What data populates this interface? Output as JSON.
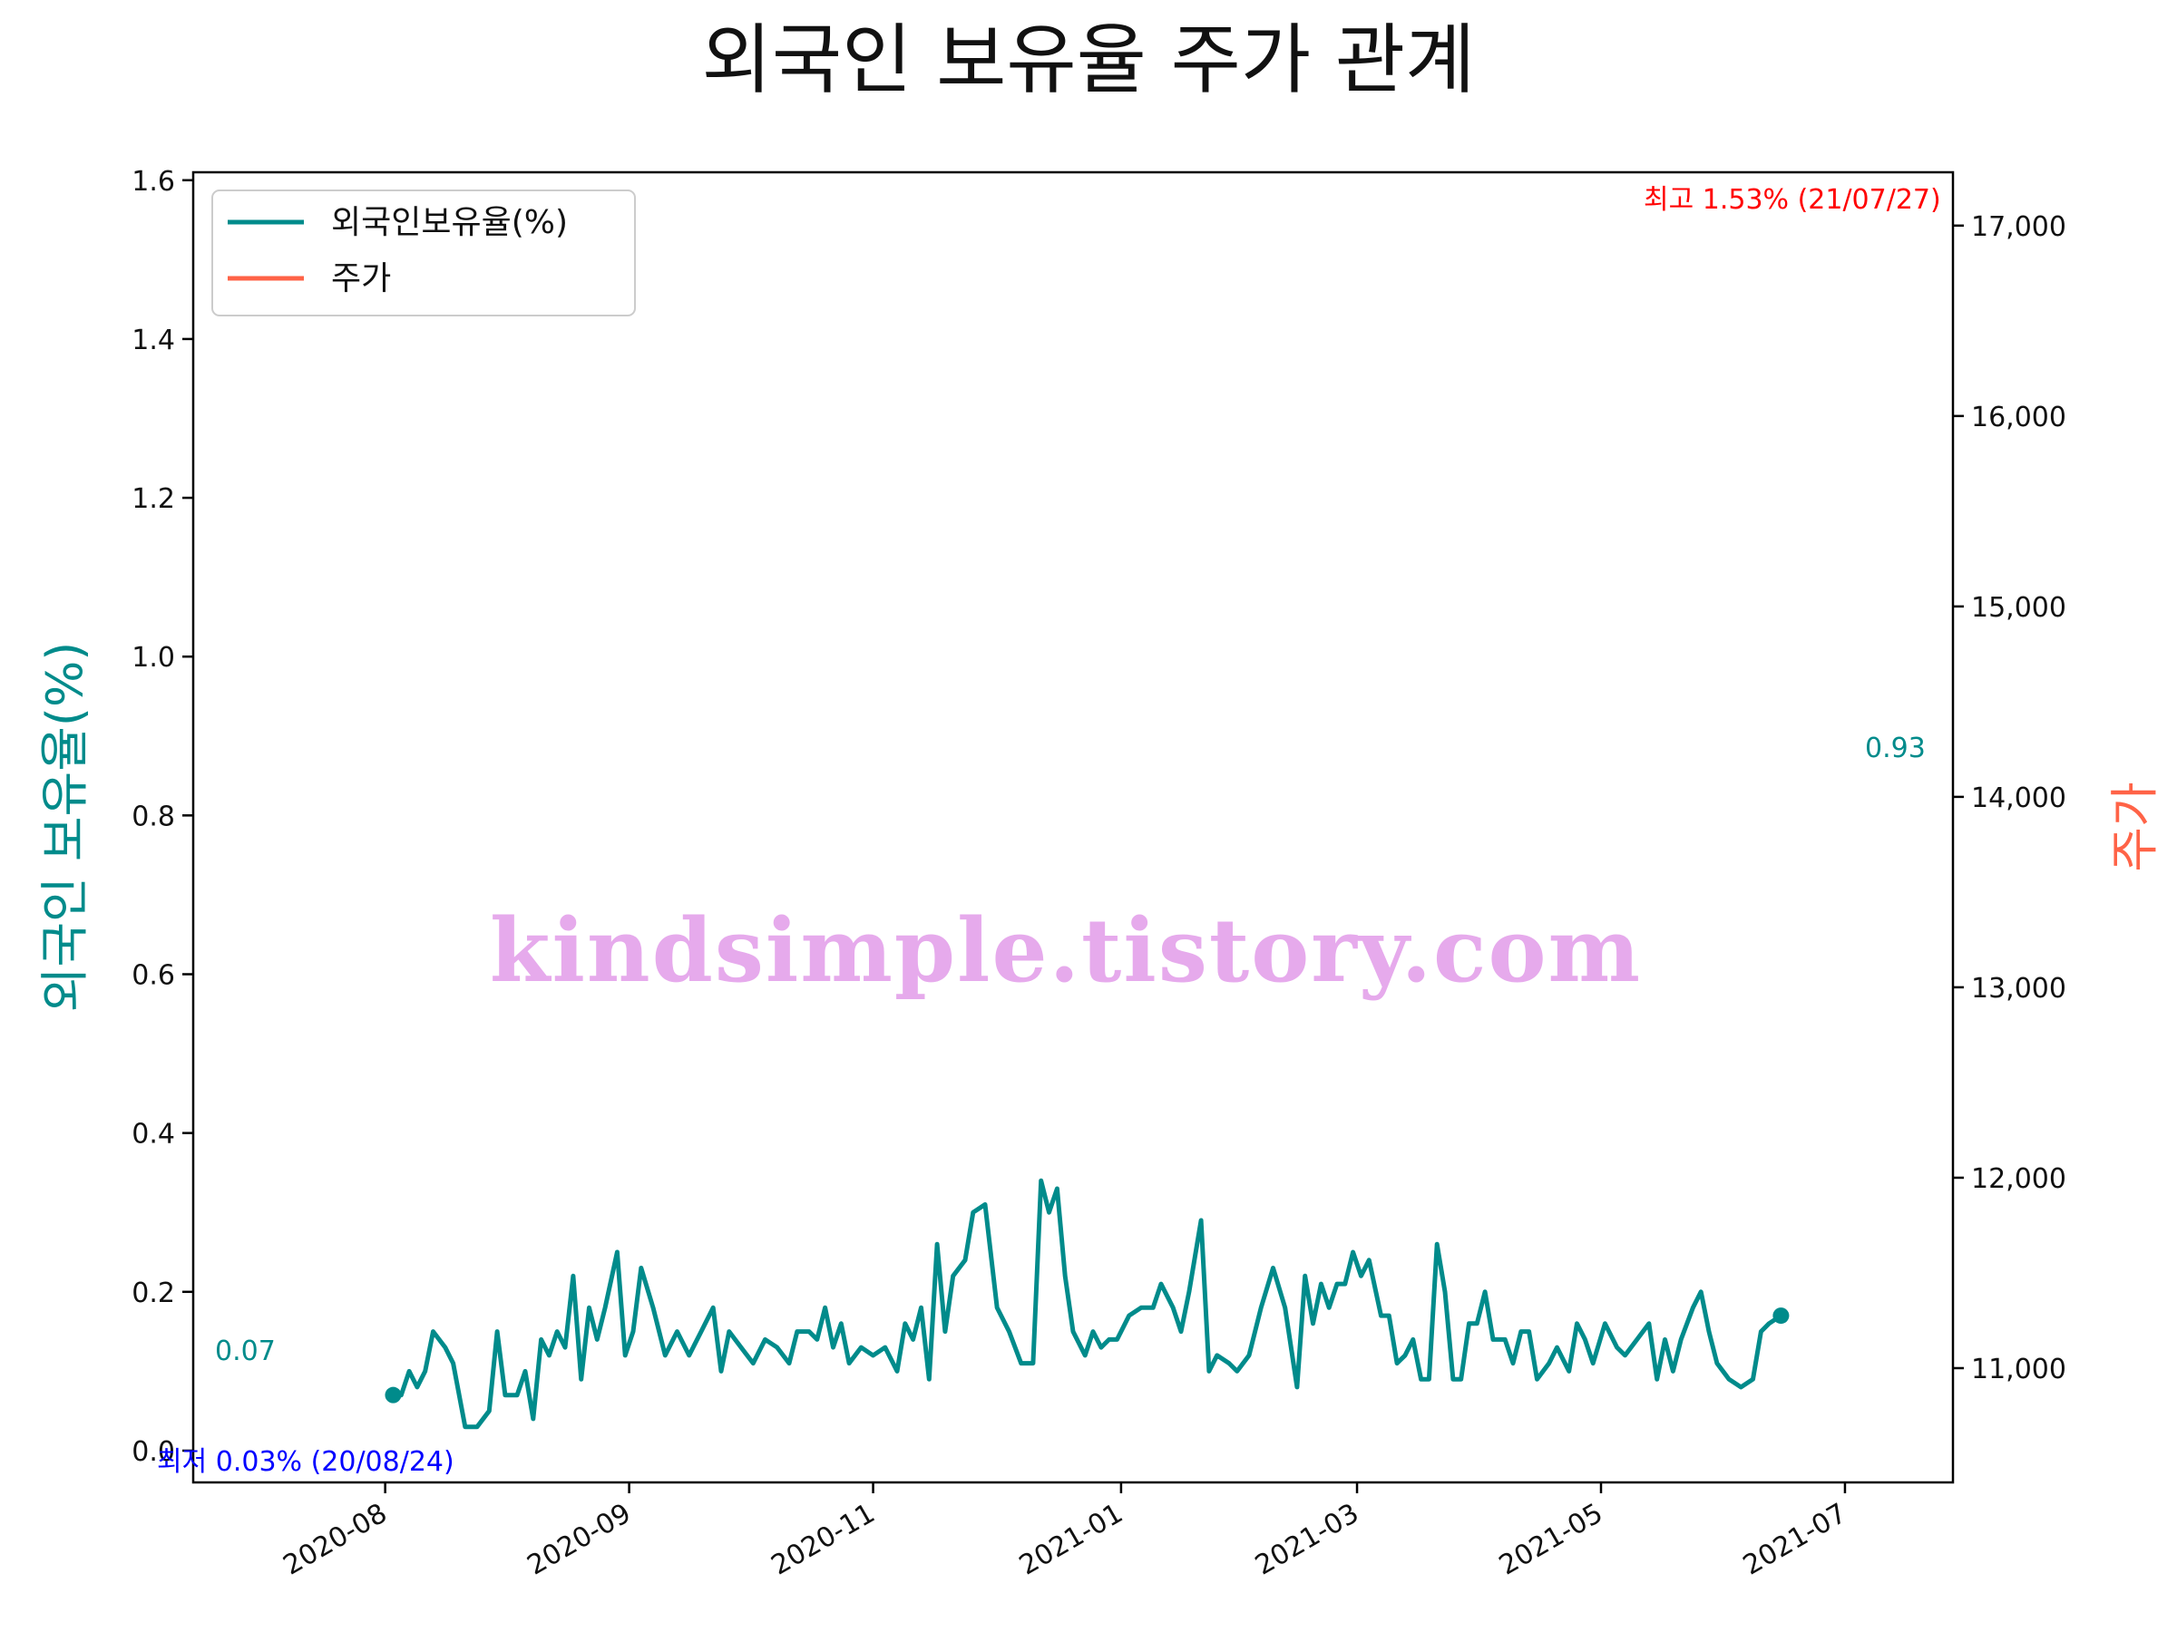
{
  "chart_data": {
    "type": "line",
    "title": "외국인 보유율 주가 관계",
    "ylabel_left": "외국인 보유율(%)",
    "ylabel_right": "주가",
    "x_tick_labels": [
      "2020-08",
      "2020-09",
      "2020-11",
      "2021-01",
      "2021-03",
      "2021-05",
      "2021-07"
    ],
    "x_ticks_dates": [
      "2020-08-01",
      "2020-10-01",
      "2020-12-01",
      "2021-02-01",
      "2021-04-01",
      "2021-06-01",
      "2021-08-01"
    ],
    "xlim": [
      "2020-06-14",
      "2021-08-28"
    ],
    "ylim_left": [
      -0.04,
      1.61
    ],
    "yticks_left": [
      0.0,
      0.2,
      0.4,
      0.6,
      0.8,
      1.0,
      1.2,
      1.4,
      1.6
    ],
    "ytick_labels_left": [
      "0.0",
      "0.2",
      "0.4",
      "0.6",
      "0.8",
      "1.0",
      "1.2",
      "1.4",
      "1.6"
    ],
    "ylim_right": [
      10400,
      17280
    ],
    "yticks_right": [
      11000,
      12000,
      13000,
      14000,
      15000,
      16000,
      17000
    ],
    "ytick_labels_right": [
      "11,000",
      "12,000",
      "13,000",
      "14,000",
      "15,000",
      "16,000",
      "17,000"
    ],
    "grid": false,
    "legend_position": "upper-left",
    "colors": {
      "ownership": "#008b8b",
      "price": "#ff6347",
      "max_annotation": "#ff0000",
      "min_annotation": "#0000ff"
    },
    "series": [
      {
        "name": "외국인보유율(%)",
        "axis": "left",
        "points": [
          [
            "2020-08-03",
            0.07
          ],
          [
            "2020-08-05",
            0.07
          ],
          [
            "2020-08-07",
            0.1
          ],
          [
            "2020-08-09",
            0.08
          ],
          [
            "2020-08-11",
            0.1
          ],
          [
            "2020-08-13",
            0.15
          ],
          [
            "2020-08-16",
            0.13
          ],
          [
            "2020-08-18",
            0.11
          ],
          [
            "2020-08-21",
            0.03
          ],
          [
            "2020-08-24",
            0.03
          ],
          [
            "2020-08-27",
            0.05
          ],
          [
            "2020-08-29",
            0.15
          ],
          [
            "2020-08-31",
            0.07
          ],
          [
            "2020-09-03",
            0.07
          ],
          [
            "2020-09-05",
            0.1
          ],
          [
            "2020-09-07",
            0.04
          ],
          [
            "2020-09-09",
            0.14
          ],
          [
            "2020-09-11",
            0.12
          ],
          [
            "2020-09-13",
            0.15
          ],
          [
            "2020-09-15",
            0.13
          ],
          [
            "2020-09-17",
            0.22
          ],
          [
            "2020-09-19",
            0.09
          ],
          [
            "2020-09-21",
            0.18
          ],
          [
            "2020-09-23",
            0.14
          ],
          [
            "2020-09-25",
            0.18
          ],
          [
            "2020-09-28",
            0.25
          ],
          [
            "2020-09-30",
            0.12
          ],
          [
            "2020-10-02",
            0.15
          ],
          [
            "2020-10-04",
            0.23
          ],
          [
            "2020-10-07",
            0.18
          ],
          [
            "2020-10-10",
            0.12
          ],
          [
            "2020-10-13",
            0.15
          ],
          [
            "2020-10-16",
            0.12
          ],
          [
            "2020-10-19",
            0.15
          ],
          [
            "2020-10-22",
            0.18
          ],
          [
            "2020-10-24",
            0.1
          ],
          [
            "2020-10-26",
            0.15
          ],
          [
            "2020-10-29",
            0.13
          ],
          [
            "2020-11-01",
            0.11
          ],
          [
            "2020-11-04",
            0.14
          ],
          [
            "2020-11-07",
            0.13
          ],
          [
            "2020-11-10",
            0.11
          ],
          [
            "2020-11-12",
            0.15
          ],
          [
            "2020-11-15",
            0.15
          ],
          [
            "2020-11-17",
            0.14
          ],
          [
            "2020-11-19",
            0.18
          ],
          [
            "2020-11-21",
            0.13
          ],
          [
            "2020-11-23",
            0.16
          ],
          [
            "2020-11-25",
            0.11
          ],
          [
            "2020-11-28",
            0.13
          ],
          [
            "2020-12-01",
            0.12
          ],
          [
            "2020-12-04",
            0.13
          ],
          [
            "2020-12-07",
            0.1
          ],
          [
            "2020-12-09",
            0.16
          ],
          [
            "2020-12-11",
            0.14
          ],
          [
            "2020-12-13",
            0.18
          ],
          [
            "2020-12-15",
            0.09
          ],
          [
            "2020-12-17",
            0.26
          ],
          [
            "2020-12-19",
            0.15
          ],
          [
            "2020-12-21",
            0.22
          ],
          [
            "2020-12-24",
            0.24
          ],
          [
            "2020-12-26",
            0.3
          ],
          [
            "2020-12-29",
            0.31
          ],
          [
            "2021-01-01",
            0.18
          ],
          [
            "2021-01-04",
            0.15
          ],
          [
            "2021-01-07",
            0.11
          ],
          [
            "2021-01-10",
            0.11
          ],
          [
            "2021-01-12",
            0.34
          ],
          [
            "2021-01-14",
            0.3
          ],
          [
            "2021-01-16",
            0.33
          ],
          [
            "2021-01-18",
            0.22
          ],
          [
            "2021-01-20",
            0.15
          ],
          [
            "2021-01-23",
            0.12
          ],
          [
            "2021-01-25",
            0.15
          ],
          [
            "2021-01-27",
            0.13
          ],
          [
            "2021-01-29",
            0.14
          ],
          [
            "2021-01-31",
            0.14
          ],
          [
            "2021-02-03",
            0.17
          ],
          [
            "2021-02-06",
            0.18
          ],
          [
            "2021-02-09",
            0.18
          ],
          [
            "2021-02-11",
            0.21
          ],
          [
            "2021-02-14",
            0.18
          ],
          [
            "2021-02-16",
            0.15
          ],
          [
            "2021-02-18",
            0.2
          ],
          [
            "2021-02-21",
            0.29
          ],
          [
            "2021-02-23",
            0.1
          ],
          [
            "2021-02-25",
            0.12
          ],
          [
            "2021-02-28",
            0.11
          ],
          [
            "2021-03-02",
            0.1
          ],
          [
            "2021-03-05",
            0.12
          ],
          [
            "2021-03-08",
            0.18
          ],
          [
            "2021-03-11",
            0.23
          ],
          [
            "2021-03-14",
            0.18
          ],
          [
            "2021-03-17",
            0.08
          ],
          [
            "2021-03-19",
            0.22
          ],
          [
            "2021-03-21",
            0.16
          ],
          [
            "2021-03-23",
            0.21
          ],
          [
            "2021-03-25",
            0.18
          ],
          [
            "2021-03-27",
            0.21
          ],
          [
            "2021-03-29",
            0.21
          ],
          [
            "2021-03-31",
            0.25
          ],
          [
            "2021-04-02",
            0.22
          ],
          [
            "2021-04-04",
            0.24
          ],
          [
            "2021-04-07",
            0.17
          ],
          [
            "2021-04-09",
            0.17
          ],
          [
            "2021-04-11",
            0.11
          ],
          [
            "2021-04-13",
            0.12
          ],
          [
            "2021-04-15",
            0.14
          ],
          [
            "2021-04-17",
            0.09
          ],
          [
            "2021-04-19",
            0.09
          ],
          [
            "2021-04-21",
            0.26
          ],
          [
            "2021-04-23",
            0.2
          ],
          [
            "2021-04-25",
            0.09
          ],
          [
            "2021-04-27",
            0.09
          ],
          [
            "2021-04-29",
            0.16
          ],
          [
            "2021-05-01",
            0.16
          ],
          [
            "2021-05-03",
            0.2
          ],
          [
            "2021-05-05",
            0.14
          ],
          [
            "2021-05-08",
            0.14
          ],
          [
            "2021-05-10",
            0.11
          ],
          [
            "2021-05-12",
            0.15
          ],
          [
            "2021-05-14",
            0.15
          ],
          [
            "2021-05-16",
            0.09
          ],
          [
            "2021-05-19",
            0.11
          ],
          [
            "2021-05-21",
            0.13
          ],
          [
            "2021-05-24",
            0.1
          ],
          [
            "2021-05-26",
            0.16
          ],
          [
            "2021-05-28",
            0.14
          ],
          [
            "2021-05-30",
            0.11
          ],
          [
            "2021-06-02",
            0.16
          ],
          [
            "2021-06-05",
            0.13
          ],
          [
            "2021-06-07",
            0.12
          ],
          [
            "2021-06-10",
            0.14
          ],
          [
            "2021-06-13",
            0.16
          ],
          [
            "2021-06-15",
            0.09
          ],
          [
            "2021-06-17",
            0.14
          ],
          [
            "2021-06-19",
            0.1
          ],
          [
            "2021-06-21",
            0.14
          ],
          [
            "2021-06-24",
            0.18
          ],
          [
            "2021-06-26",
            0.2
          ],
          [
            "2021-06-28",
            0.15
          ],
          [
            "2021-06-30",
            0.11
          ],
          [
            "2021-07-03",
            0.09
          ],
          [
            "2021-07-06",
            0.08
          ],
          [
            "2021-07-09",
            0.09
          ],
          [
            "2021-07-11",
            0.15
          ],
          [
            "2021-07-13",
            0.16
          ],
          [
            "2021-07-16",
            0.17
          ]
        ]
      },
      {
        "name": "주가",
        "axis": "right",
        "points": []
      }
    ],
    "max_annotation_label": "최고 1.53% (21/07/27)",
    "min_annotation_label": "최저 0.03% (20/08/24)",
    "start_label": "0.07",
    "end_label": "0.93",
    "watermark": "kindsimple.tistory.com"
  }
}
